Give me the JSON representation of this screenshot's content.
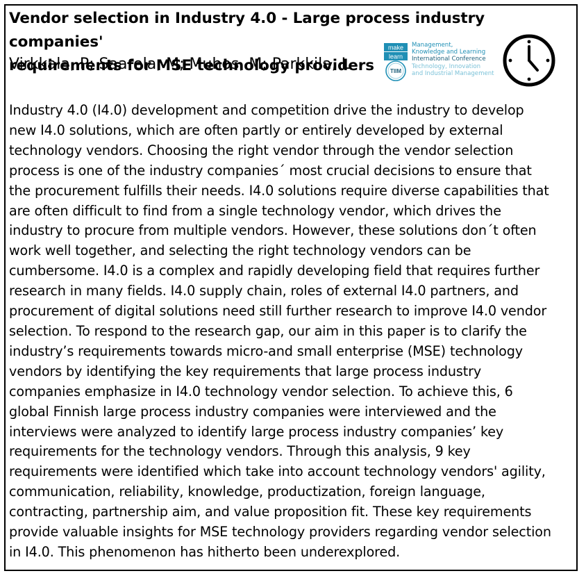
{
  "paper": {
    "title_line1": "Vendor selection in Industry 4.0 - Large process industry companies'",
    "title_line2": "requirements for MSE technology providers",
    "authors": "Virkkala, P; Saarela, M; Muhos, M; Parkkila, L"
  },
  "conference_logo": {
    "badge_top": "make",
    "badge_mid": "learn",
    "badge_bottom": "TIIM",
    "line1": "Management,",
    "line2": "Knowledge and Learning",
    "line3": "International Conference",
    "line4": "Technology, Innovation",
    "line5": "and Industrial Management"
  },
  "icons": {
    "clock": "clock-icon"
  },
  "abstract_lines": [
    "Industry 4.0 (I4.0) development and competition drive the industry to develop",
    "new I4.0 solutions, which are often partly or entirely developed by external",
    "technology vendors. Choosing the right vendor through the vendor selection",
    "process is one of the industry companies´ most crucial decisions to ensure that",
    "the procurement fulfills their needs. I4.0 solutions require diverse capabilities that",
    "are often difficult to find from a single technology vendor, which drives the",
    "industry to procure from multiple vendors. However, these solutions don´t often",
    "work well together, and selecting the right technology vendors can be",
    "cumbersome. I4.0 is a complex and rapidly developing field that requires further",
    "research in many fields. I4.0 supply chain, roles of external I4.0 partners, and",
    "procurement of digital solutions need still further research to improve I4.0 vendor",
    "selection. To respond to the research gap, our aim in this paper is to clarify the",
    "industry’s requirements towards micro-and small enterprise (MSE) technology",
    "vendors by identifying the key requirements that large process industry",
    "companies emphasize in I4.0 technology vendor selection. To achieve this, 6",
    "global Finnish large process industry companies were interviewed and the",
    "interviews were analyzed to identify large process industry companies’ key",
    "requirements for the technology vendors. Through this analysis, 9 key",
    "requirements were identified which take into account technology vendors' agility,",
    "communication, reliability, knowledge, productization, foreign language,",
    "contracting, partnership aim, and value proposition fit. These key requirements",
    "provide valuable insights for MSE technology providers regarding vendor selection",
    "in I4.0. This phenomenon has hitherto been underexplored."
  ]
}
